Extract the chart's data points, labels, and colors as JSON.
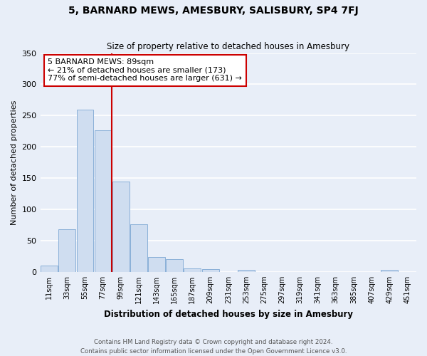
{
  "title": "5, BARNARD MEWS, AMESBURY, SALISBURY, SP4 7FJ",
  "subtitle": "Size of property relative to detached houses in Amesbury",
  "xlabel": "Distribution of detached houses by size in Amesbury",
  "ylabel": "Number of detached properties",
  "bin_labels": [
    "11sqm",
    "33sqm",
    "55sqm",
    "77sqm",
    "99sqm",
    "121sqm",
    "143sqm",
    "165sqm",
    "187sqm",
    "209sqm",
    "231sqm",
    "253sqm",
    "275sqm",
    "297sqm",
    "319sqm",
    "341sqm",
    "363sqm",
    "385sqm",
    "407sqm",
    "429sqm",
    "451sqm"
  ],
  "bar_values": [
    10,
    68,
    260,
    226,
    144,
    76,
    24,
    20,
    5,
    4,
    0,
    3,
    0,
    0,
    0,
    0,
    0,
    0,
    0,
    3,
    0
  ],
  "bar_color": "#cfddf0",
  "bar_edge_color": "#8ab0d8",
  "background_color": "#e8eef8",
  "grid_color": "#ffffff",
  "vline_x": 3,
  "vline_color": "#cc0000",
  "annotation_title": "5 BARNARD MEWS: 89sqm",
  "annotation_line1": "← 21% of detached houses are smaller (173)",
  "annotation_line2": "77% of semi-detached houses are larger (631) →",
  "annotation_box_color": "#ffffff",
  "annotation_box_edge": "#cc0000",
  "ylim": [
    0,
    350
  ],
  "yticks": [
    0,
    50,
    100,
    150,
    200,
    250,
    300,
    350
  ],
  "footer1": "Contains HM Land Registry data © Crown copyright and database right 2024.",
  "footer2": "Contains public sector information licensed under the Open Government Licence v3.0."
}
